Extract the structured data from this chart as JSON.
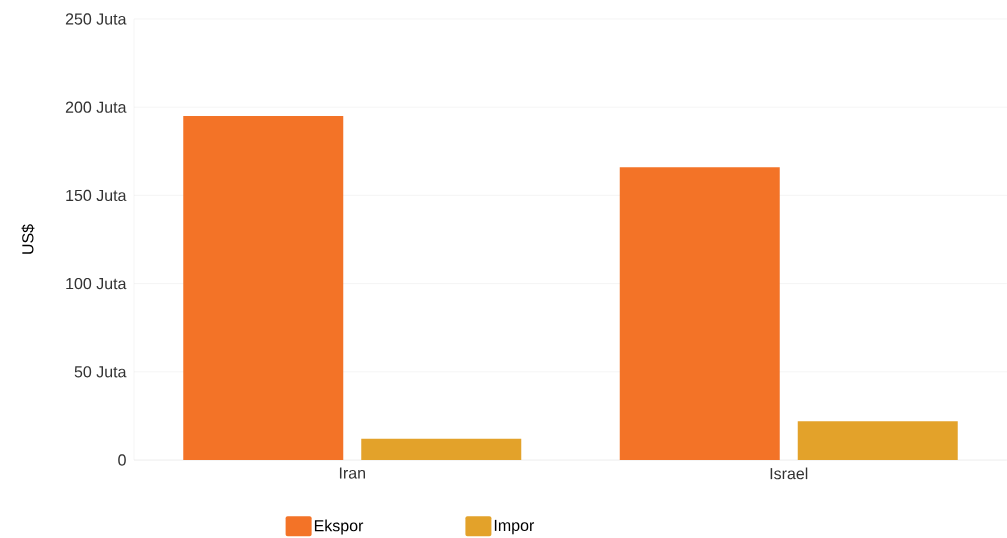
{
  "chart_data": {
    "type": "bar",
    "ylabel": "US$",
    "categories": [
      "Iran",
      "Israel"
    ],
    "series": [
      {
        "name": "Ekspor",
        "color": "#f37327",
        "values": [
          195,
          166
        ]
      },
      {
        "name": "Impor",
        "color": "#e3a22a",
        "values": [
          12,
          22
        ]
      }
    ],
    "ylim": [
      0,
      250
    ],
    "yticks": [
      0,
      {
        "value": 50,
        "label": "50 Juta"
      },
      {
        "value": 100,
        "label": "100 Juta"
      },
      {
        "value": 150,
        "label": "150 Juta"
      },
      {
        "value": 200,
        "label": "200 Juta"
      },
      {
        "value": 250,
        "label": "250 Juta"
      }
    ],
    "grid": "y",
    "legend": "bottom"
  }
}
